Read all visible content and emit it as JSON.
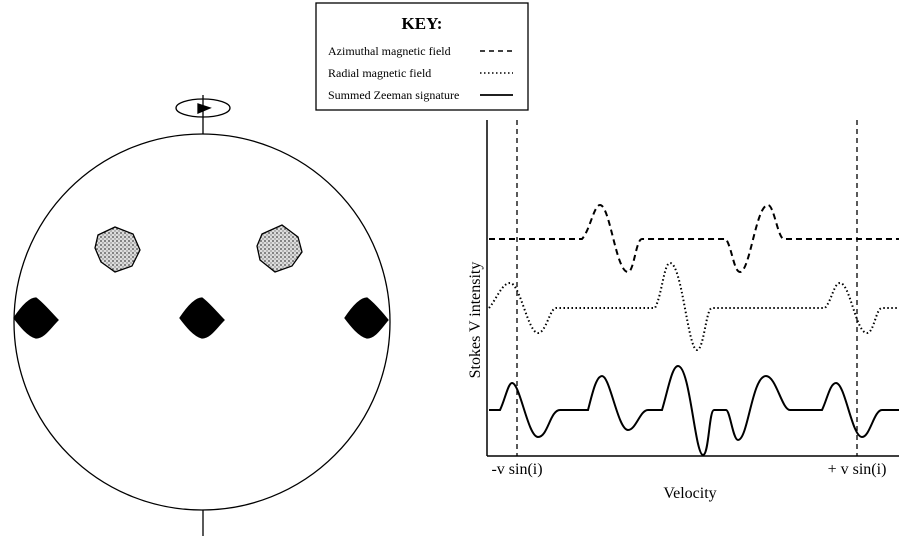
{
  "key": {
    "title": "KEY:",
    "items": [
      {
        "label": "Azimuthal magnetic field"
      },
      {
        "label": "Radial magnetic field"
      },
      {
        "label": "Summed Zeeman signature"
      }
    ]
  },
  "plot": {
    "y_label": "Stokes V intensity",
    "x_label": "Velocity",
    "markers": [
      "-v sin(i)",
      "+ v sin(i)"
    ]
  }
}
